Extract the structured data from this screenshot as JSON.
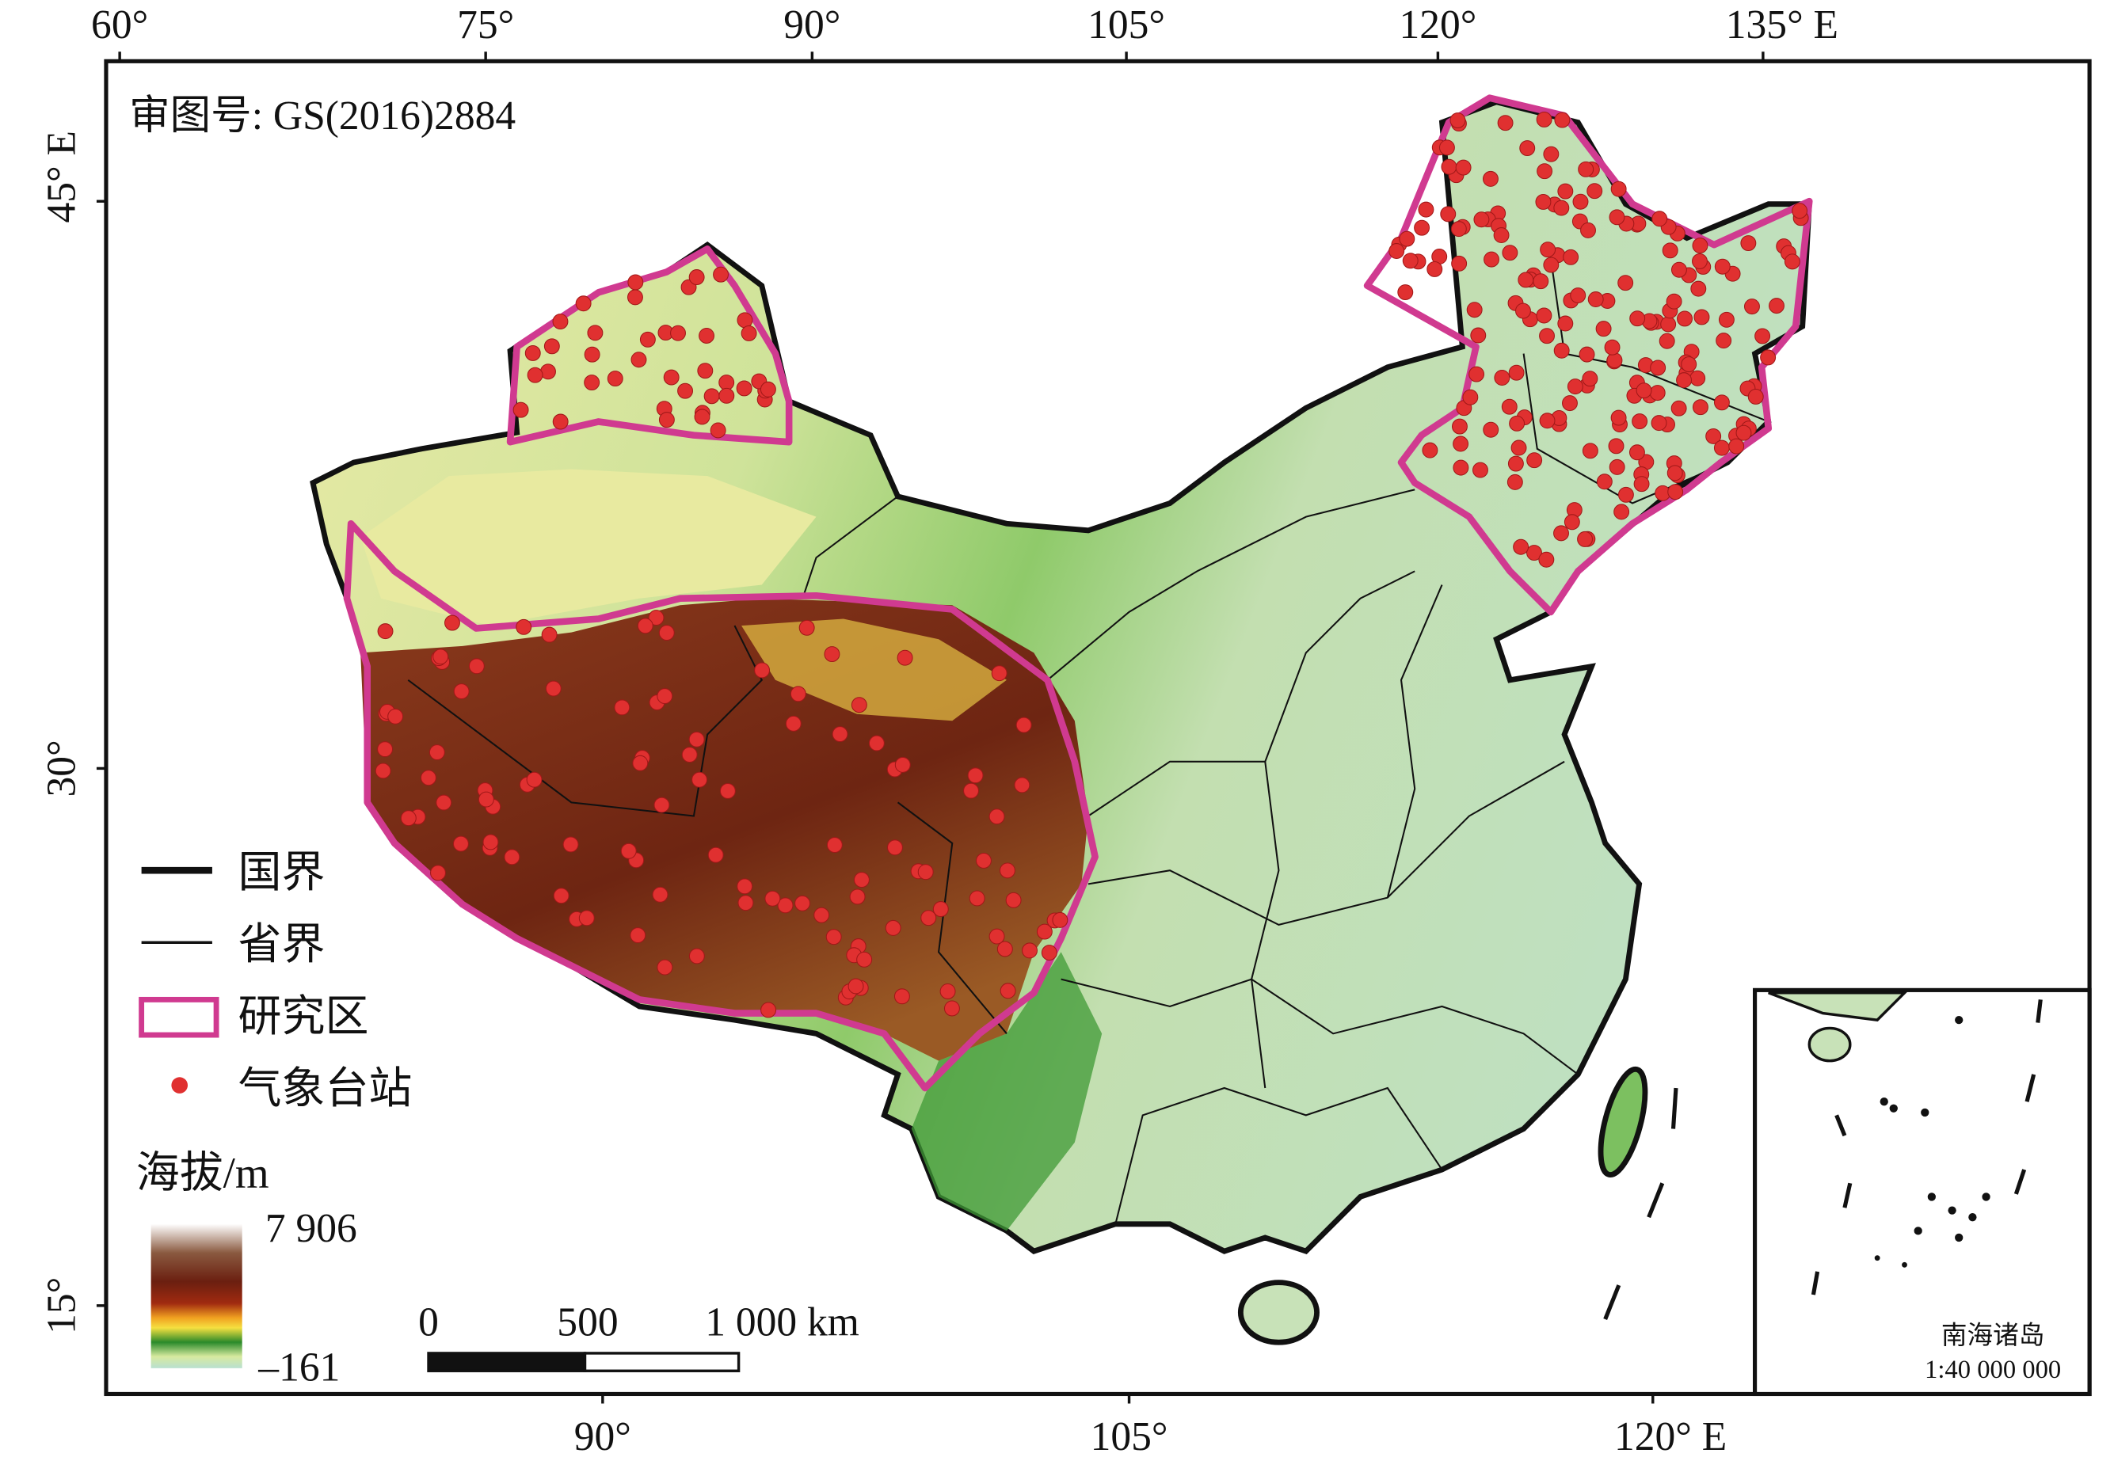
{
  "header": {
    "approval": "审图号: GS(2016)2884"
  },
  "top_axis": {
    "labels": [
      "60°",
      "75°",
      "90°",
      "105°",
      "120°",
      "135° E"
    ]
  },
  "left_axis": {
    "labels": [
      "45° E",
      "30°",
      "15°"
    ]
  },
  "bottom_axis": {
    "labels": [
      "90°",
      "105°",
      "120° E"
    ]
  },
  "legend": {
    "items": [
      "国界",
      "省界",
      "研究区",
      "气象台站"
    ]
  },
  "elevation": {
    "title": "海拔/m",
    "max": "7 906",
    "min": "–161"
  },
  "scale_bar": {
    "labels": [
      "0",
      "500",
      "1 000 km"
    ]
  },
  "inset": {
    "title": "南海诸岛",
    "scale": "1:40 000 000"
  }
}
